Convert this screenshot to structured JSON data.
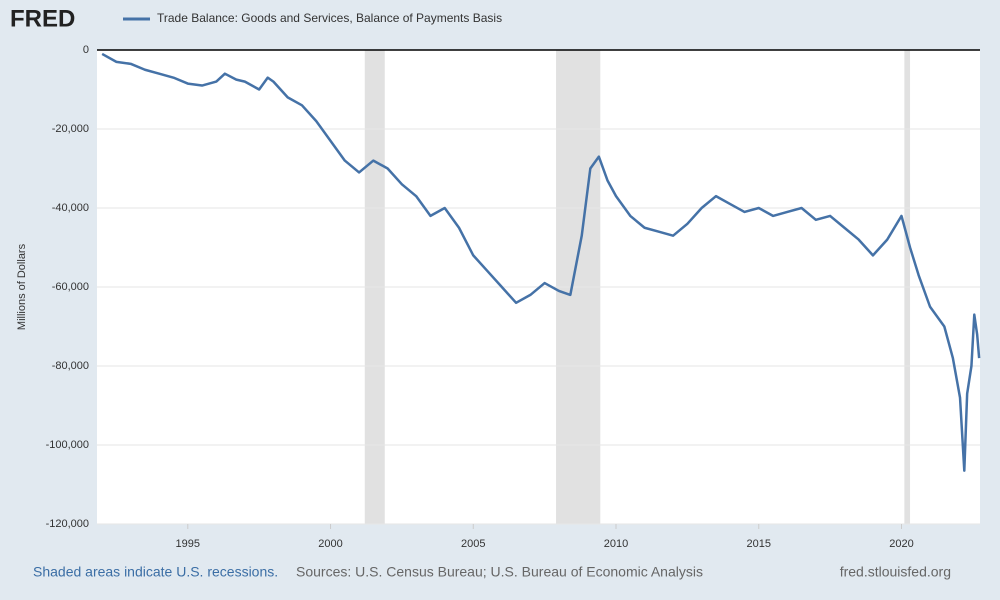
{
  "logo": "FRED",
  "footer": {
    "left": "Shaded areas indicate U.S. recessions.",
    "center": "Sources: U.S. Census Bureau; U.S. Bureau of Economic Analysis",
    "right": "fred.stlouisfed.org"
  },
  "chart_data": {
    "type": "line",
    "y_label": "Millions of Dollars",
    "xlim": [
      1991.82,
      2022.75
    ],
    "xticks": [
      1995,
      2000,
      2005,
      2010,
      2015,
      2020
    ],
    "ylim": [
      -120000,
      0
    ],
    "yticks": [
      {
        "value": -120000,
        "label": "-120,000"
      },
      {
        "value": -100000,
        "label": "-100,000"
      },
      {
        "value": -80000,
        "label": "-80,000"
      },
      {
        "value": -60000,
        "label": "-60,000"
      },
      {
        "value": -40000,
        "label": "-40,000"
      },
      {
        "value": -20000,
        "label": "-20,000"
      },
      0
    ],
    "grid": true,
    "recessions": [
      [
        2001.2,
        2001.9
      ],
      [
        2007.9,
        2009.45
      ],
      [
        2020.1,
        2020.3
      ]
    ],
    "x": [
      1992.0,
      1992.5,
      1993.0,
      1993.5,
      1994.0,
      1994.5,
      1995.0,
      1995.5,
      1996.0,
      1996.3,
      1996.7,
      1997.0,
      1997.5,
      1997.8,
      1998.0,
      1998.5,
      1999.0,
      1999.5,
      2000.0,
      2000.5,
      2001.0,
      2001.5,
      2002.0,
      2002.5,
      2003.0,
      2003.5,
      2004.0,
      2004.5,
      2005.0,
      2005.5,
      2006.0,
      2006.5,
      2007.0,
      2007.5,
      2008.0,
      2008.4,
      2008.8,
      2009.1,
      2009.4,
      2009.7,
      2010.0,
      2010.5,
      2011.0,
      2011.5,
      2012.0,
      2012.5,
      2013.0,
      2013.5,
      2014.0,
      2014.5,
      2015.0,
      2015.5,
      2016.0,
      2016.5,
      2017.0,
      2017.5,
      2018.0,
      2018.5,
      2019.0,
      2019.5,
      2020.0,
      2020.3,
      2020.6,
      2021.0,
      2021.5,
      2021.8,
      2022.05,
      2022.2,
      2022.3,
      2022.45,
      2022.55,
      2022.65,
      2022.72
    ],
    "series": [
      {
        "name": "Trade Balance: Goods and Services, Balance of Payments Basis",
        "color": "#4572a7",
        "values": [
          -1000,
          -3000,
          -3500,
          -5000,
          -6000,
          -7000,
          -8500,
          -9000,
          -8000,
          -6000,
          -7500,
          -8000,
          -10000,
          -7000,
          -8000,
          -12000,
          -14000,
          -18000,
          -23000,
          -28000,
          -31000,
          -28000,
          -30000,
          -34000,
          -37000,
          -42000,
          -40000,
          -45000,
          -52000,
          -56000,
          -60000,
          -64000,
          -62000,
          -59000,
          -61000,
          -62000,
          -47000,
          -30000,
          -27000,
          -33000,
          -37000,
          -42000,
          -45000,
          -46000,
          -47000,
          -44000,
          -40000,
          -37000,
          -39000,
          -41000,
          -40000,
          -42000,
          -41000,
          -40000,
          -43000,
          -42000,
          -45000,
          -48000,
          -52000,
          -48000,
          -42000,
          -50000,
          -57000,
          -65000,
          -70000,
          -78000,
          -88000,
          -106500,
          -87000,
          -80000,
          -67000,
          -72000,
          -78000
        ]
      }
    ]
  }
}
